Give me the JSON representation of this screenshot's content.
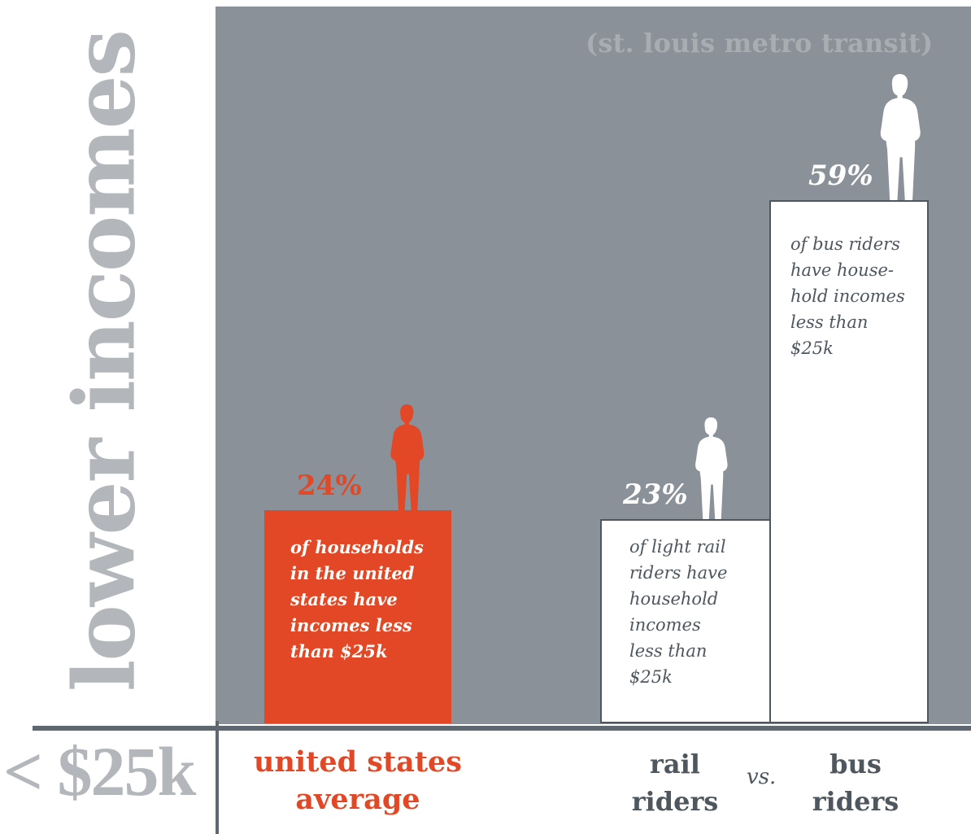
{
  "title": "lower incomes",
  "threshold_label": "< $25k",
  "subtitle": "(st. louis metro transit)",
  "vs_label": "vs.",
  "colors": {
    "accent": "#e24825",
    "panel": "#8b9198",
    "text_dark": "#4e565e",
    "text_light": "#b3b7bb",
    "white": "#ffffff"
  },
  "chart_data": {
    "type": "bar",
    "title": "lower incomes",
    "subtitle": "(st. louis metro transit)",
    "xlabel": "",
    "ylabel": "",
    "ylim": [
      0,
      100
    ],
    "categories": [
      "united states average",
      "rail riders",
      "bus riders"
    ],
    "values": [
      24,
      23,
      59
    ],
    "value_labels": [
      "24%",
      "23%",
      "59%"
    ],
    "descriptions": [
      "of households\nin the united\nstates have\nincomes less\nthan $25k",
      "of light rail\nriders have\nhousehold\nincomes\nless than\n$25k",
      "of bus riders\nhave house-\nhold incomes\nless than\n$25k"
    ],
    "category_labels": [
      "united states\naverage",
      "rail\nriders",
      "bus\nriders"
    ],
    "colors": [
      "#e24825",
      "#ffffff",
      "#ffffff"
    ],
    "grid": false,
    "legend": "none"
  }
}
